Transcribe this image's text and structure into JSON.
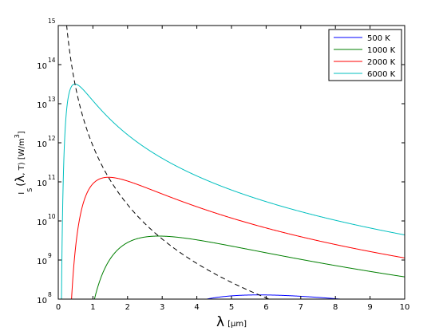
{
  "chart_data": {
    "type": "line",
    "xlabel": {
      "symbol": "λ",
      "unit": "[μm]"
    },
    "ylabel": {
      "var": "I",
      "sub": "S",
      "open": "(",
      "lambda": "λ",
      "args": ", T) [W/m",
      "sup": "3",
      "close": "]"
    },
    "xlim": [
      0,
      10
    ],
    "ylim": [
      8,
      15
    ],
    "y_scale": "log10",
    "x_ticks": [
      "0",
      "1",
      "2",
      "3",
      "4",
      "5",
      "6",
      "7",
      "8",
      "9",
      "10"
    ],
    "y_ticks": [
      {
        "exp": "15",
        "base": ""
      },
      {
        "exp": "14",
        "base": "10"
      },
      {
        "exp": "13",
        "base": "10"
      },
      {
        "exp": "12",
        "base": "10"
      },
      {
        "exp": "11",
        "base": "10"
      },
      {
        "exp": "10",
        "base": "10"
      },
      {
        "exp": "9",
        "base": "10"
      },
      {
        "exp": "8",
        "base": "10"
      }
    ],
    "legend_position": "top-right",
    "series": [
      {
        "name": "500 K",
        "T": 500,
        "color": "#0000ff"
      },
      {
        "name": "1000 K",
        "T": 1000,
        "color": "#007f00"
      },
      {
        "name": "2000 K",
        "T": 2000,
        "color": "#ff0000"
      },
      {
        "name": "6000 K",
        "T": 6000,
        "color": "#00bfbf"
      }
    ],
    "wien_curve": {
      "style": "dashed",
      "color": "#000000"
    }
  }
}
